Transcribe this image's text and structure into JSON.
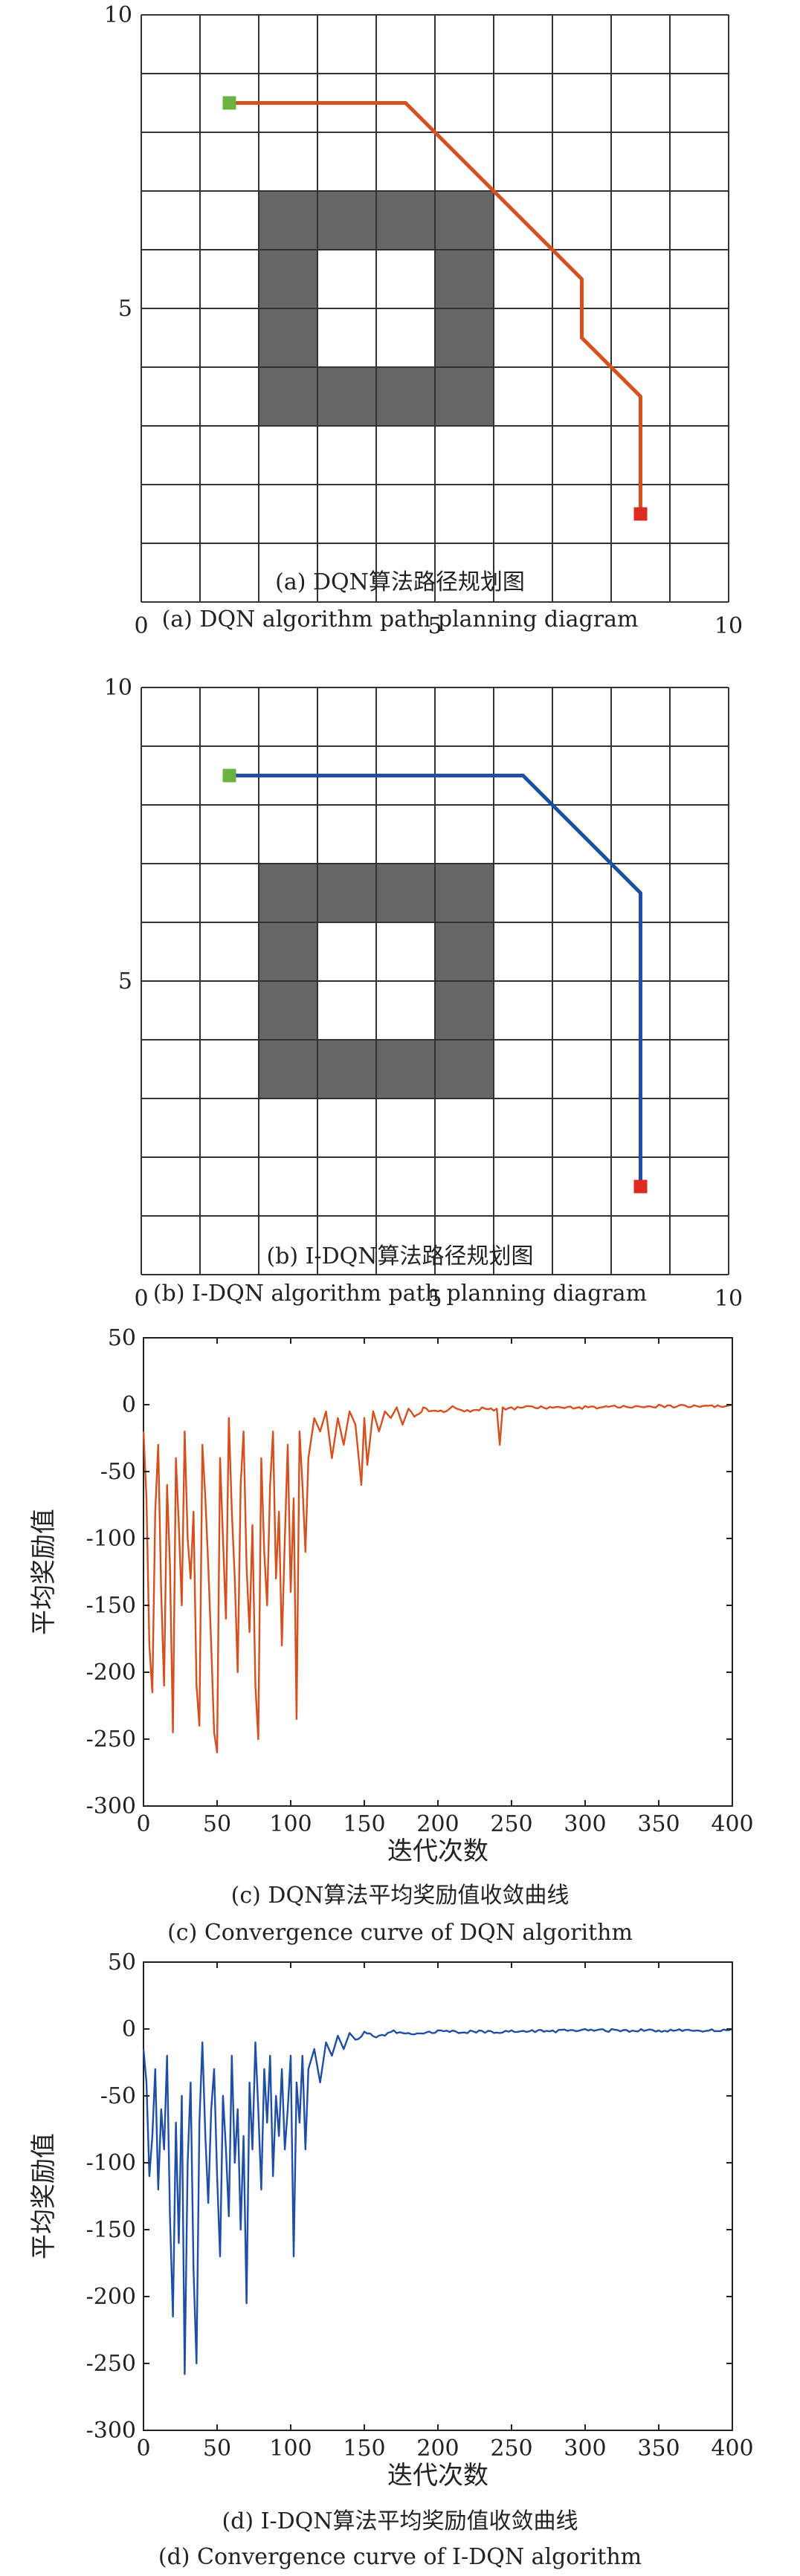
{
  "panels": [
    {
      "id": "a",
      "chart_data": {
        "type": "line",
        "subtype": "grid-path",
        "xlim": [
          0,
          10
        ],
        "ylim": [
          0,
          10
        ],
        "xticks": [
          "0",
          "5",
          "10"
        ],
        "yticks": [
          "5",
          "10"
        ],
        "grid": true,
        "obstacle_cells": [
          [
            2,
            3
          ],
          [
            3,
            3
          ],
          [
            4,
            3
          ],
          [
            5,
            3
          ],
          [
            2,
            4
          ],
          [
            5,
            4
          ],
          [
            2,
            5
          ],
          [
            5,
            5
          ],
          [
            2,
            6
          ],
          [
            3,
            6
          ],
          [
            4,
            6
          ],
          [
            5,
            6
          ]
        ],
        "path": [
          [
            1.5,
            8.5
          ],
          [
            4.5,
            8.5
          ],
          [
            7.5,
            5.5
          ],
          [
            7.5,
            4.5
          ],
          [
            8.5,
            3.5
          ],
          [
            8.5,
            1.5
          ]
        ],
        "start": [
          1.5,
          8.5
        ],
        "goal": [
          8.5,
          1.5
        ],
        "path_color": "#d5501e",
        "start_color": "#6ab33f",
        "goal_color": "#dd2a23",
        "obstacle_color": "#666666",
        "caption_cn": "(a) DQN算法路径规划图",
        "caption_en": "(a) DQN algorithm path planning diagram"
      }
    },
    {
      "id": "b",
      "chart_data": {
        "type": "line",
        "subtype": "grid-path",
        "xlim": [
          0,
          10
        ],
        "ylim": [
          0,
          10
        ],
        "xticks": [
          "0",
          "5",
          "10"
        ],
        "yticks": [
          "5",
          "10"
        ],
        "grid": true,
        "obstacle_cells": [
          [
            2,
            3
          ],
          [
            3,
            3
          ],
          [
            4,
            3
          ],
          [
            5,
            3
          ],
          [
            2,
            4
          ],
          [
            5,
            4
          ],
          [
            2,
            5
          ],
          [
            5,
            5
          ],
          [
            2,
            6
          ],
          [
            3,
            6
          ],
          [
            4,
            6
          ],
          [
            5,
            6
          ]
        ],
        "path": [
          [
            1.5,
            8.5
          ],
          [
            6.5,
            8.5
          ],
          [
            8.5,
            6.5
          ],
          [
            8.5,
            1.5
          ]
        ],
        "start": [
          1.5,
          8.5
        ],
        "goal": [
          8.5,
          1.5
        ],
        "path_color": "#1f4ea6",
        "start_color": "#6ab33f",
        "goal_color": "#dd2a23",
        "obstacle_color": "#666666",
        "caption_cn": "(b) I-DQN算法路径规划图",
        "caption_en": "(b) I-DQN algorithm path planning diagram"
      }
    },
    {
      "id": "c",
      "chart_data": {
        "type": "line",
        "xlim": [
          0,
          400
        ],
        "ylim": [
          -300,
          50
        ],
        "xticks": [
          "0",
          "50",
          "100",
          "150",
          "200",
          "250",
          "300",
          "350",
          "400"
        ],
        "yticks": [
          "50",
          "0",
          "-50",
          "-100",
          "-150",
          "-200",
          "-250",
          "-300"
        ],
        "xlabel": "迭代次数",
        "ylabel": "平均奖励值",
        "grid": false,
        "color": "#d5501e",
        "seed": 7,
        "key_points": [
          [
            0,
            -20
          ],
          [
            2,
            -70
          ],
          [
            4,
            -180
          ],
          [
            6,
            -215
          ],
          [
            8,
            -80
          ],
          [
            10,
            -30
          ],
          [
            12,
            -140
          ],
          [
            14,
            -210
          ],
          [
            16,
            -60
          ],
          [
            18,
            -120
          ],
          [
            20,
            -245
          ],
          [
            22,
            -40
          ],
          [
            24,
            -90
          ],
          [
            26,
            -150
          ],
          [
            28,
            -20
          ],
          [
            30,
            -100
          ],
          [
            32,
            -130
          ],
          [
            34,
            -80
          ],
          [
            36,
            -210
          ],
          [
            38,
            -240
          ],
          [
            40,
            -30
          ],
          [
            42,
            -70
          ],
          [
            44,
            -120
          ],
          [
            46,
            -180
          ],
          [
            48,
            -245
          ],
          [
            50,
            -260
          ],
          [
            52,
            -40
          ],
          [
            54,
            -100
          ],
          [
            56,
            -160
          ],
          [
            58,
            -10
          ],
          [
            60,
            -80
          ],
          [
            62,
            -130
          ],
          [
            64,
            -200
          ],
          [
            66,
            -60
          ],
          [
            68,
            -20
          ],
          [
            70,
            -120
          ],
          [
            72,
            -170
          ],
          [
            74,
            -90
          ],
          [
            76,
            -210
          ],
          [
            78,
            -250
          ],
          [
            80,
            -40
          ],
          [
            82,
            -110
          ],
          [
            84,
            -150
          ],
          [
            86,
            -60
          ],
          [
            88,
            -20
          ],
          [
            90,
            -130
          ],
          [
            92,
            -80
          ],
          [
            94,
            -180
          ],
          [
            96,
            -100
          ],
          [
            98,
            -30
          ],
          [
            100,
            -140
          ],
          [
            102,
            -70
          ],
          [
            104,
            -235
          ],
          [
            106,
            -20
          ],
          [
            108,
            -60
          ],
          [
            110,
            -110
          ],
          [
            112,
            -40
          ],
          [
            116,
            -10
          ],
          [
            120,
            -20
          ],
          [
            124,
            -5
          ],
          [
            128,
            -40
          ],
          [
            132,
            -10
          ],
          [
            136,
            -30
          ],
          [
            140,
            -5
          ],
          [
            144,
            -15
          ],
          [
            148,
            -60
          ],
          [
            150,
            -10
          ],
          [
            152,
            -45
          ],
          [
            156,
            -5
          ],
          [
            160,
            -20
          ],
          [
            164,
            -5
          ],
          [
            168,
            -10
          ],
          [
            172,
            -2
          ],
          [
            176,
            -15
          ],
          [
            180,
            -3
          ],
          [
            185,
            -8
          ],
          [
            190,
            -2
          ],
          [
            200,
            -5
          ],
          [
            210,
            -1
          ],
          [
            220,
            -4
          ],
          [
            230,
            -2
          ],
          [
            240,
            -3
          ],
          [
            242,
            -30
          ],
          [
            244,
            -2
          ],
          [
            260,
            -1
          ],
          [
            300,
            -1
          ],
          [
            350,
            0
          ],
          [
            400,
            0
          ]
        ],
        "caption_cn": "(c) DQN算法平均奖励值收敛曲线",
        "caption_en": "(c) Convergence curve of DQN algorithm"
      }
    },
    {
      "id": "d",
      "chart_data": {
        "type": "line",
        "xlim": [
          0,
          400
        ],
        "ylim": [
          -300,
          50
        ],
        "xticks": [
          "0",
          "50",
          "100",
          "150",
          "200",
          "250",
          "300",
          "350",
          "400"
        ],
        "yticks": [
          "50",
          "0",
          "-50",
          "-100",
          "-150",
          "-200",
          "-250",
          "-300"
        ],
        "xlabel": "迭代次数",
        "ylabel": "平均奖励值",
        "grid": false,
        "color": "#1f4ea6",
        "seed": 11,
        "key_points": [
          [
            0,
            -15
          ],
          [
            2,
            -40
          ],
          [
            4,
            -110
          ],
          [
            6,
            -80
          ],
          [
            8,
            -30
          ],
          [
            10,
            -120
          ],
          [
            12,
            -60
          ],
          [
            14,
            -90
          ],
          [
            16,
            -20
          ],
          [
            18,
            -140
          ],
          [
            20,
            -215
          ],
          [
            22,
            -70
          ],
          [
            24,
            -160
          ],
          [
            26,
            -50
          ],
          [
            28,
            -258
          ],
          [
            30,
            -100
          ],
          [
            32,
            -40
          ],
          [
            34,
            -180
          ],
          [
            36,
            -250
          ],
          [
            38,
            -70
          ],
          [
            40,
            -10
          ],
          [
            42,
            -80
          ],
          [
            44,
            -130
          ],
          [
            46,
            -60
          ],
          [
            48,
            -30
          ],
          [
            50,
            -110
          ],
          [
            52,
            -170
          ],
          [
            54,
            -50
          ],
          [
            56,
            -90
          ],
          [
            58,
            -140
          ],
          [
            60,
            -20
          ],
          [
            62,
            -100
          ],
          [
            64,
            -60
          ],
          [
            66,
            -150
          ],
          [
            68,
            -80
          ],
          [
            70,
            -205
          ],
          [
            72,
            -40
          ],
          [
            74,
            -90
          ],
          [
            76,
            -10
          ],
          [
            78,
            -60
          ],
          [
            80,
            -120
          ],
          [
            82,
            -30
          ],
          [
            84,
            -70
          ],
          [
            86,
            -20
          ],
          [
            88,
            -110
          ],
          [
            90,
            -50
          ],
          [
            92,
            -80
          ],
          [
            94,
            -30
          ],
          [
            96,
            -90
          ],
          [
            98,
            -60
          ],
          [
            100,
            -20
          ],
          [
            102,
            -170
          ],
          [
            104,
            -40
          ],
          [
            106,
            -70
          ],
          [
            108,
            -20
          ],
          [
            110,
            -90
          ],
          [
            112,
            -30
          ],
          [
            116,
            -15
          ],
          [
            120,
            -40
          ],
          [
            124,
            -10
          ],
          [
            128,
            -20
          ],
          [
            132,
            -5
          ],
          [
            136,
            -15
          ],
          [
            140,
            -3
          ],
          [
            144,
            -8
          ],
          [
            150,
            -2
          ],
          [
            160,
            -5
          ],
          [
            170,
            -1
          ],
          [
            180,
            -3
          ],
          [
            200,
            -1
          ],
          [
            250,
            -1
          ],
          [
            300,
            0
          ],
          [
            400,
            0
          ]
        ],
        "caption_cn": "(d) I-DQN算法平均奖励值收敛曲线",
        "caption_en": "(d) Convergence curve of I-DQN algorithm"
      }
    }
  ]
}
